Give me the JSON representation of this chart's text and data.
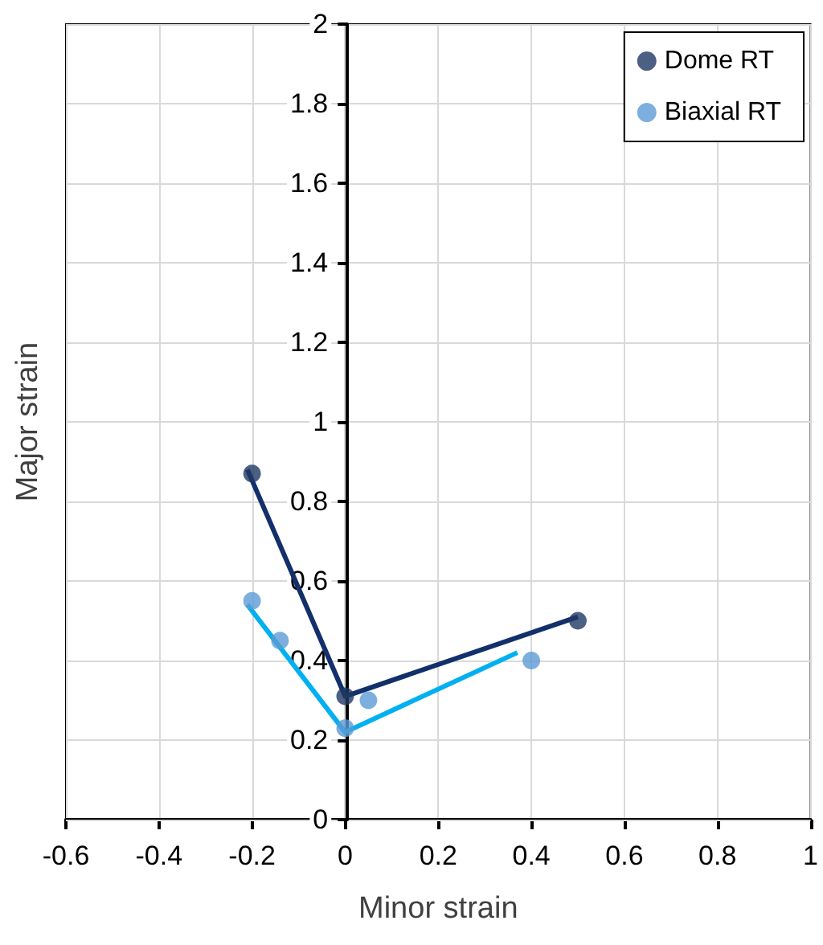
{
  "chart_data": {
    "type": "scatter",
    "xlabel": "Minor strain",
    "ylabel": "Major strain",
    "xlim": [
      -0.6,
      1
    ],
    "xticks": [
      -0.6,
      -0.4,
      -0.2,
      0,
      0.2,
      0.4,
      0.6,
      0.8,
      1
    ],
    "ylim": [
      0,
      2
    ],
    "yticks": [
      0,
      0.2,
      0.4,
      0.6,
      0.8,
      1,
      1.2,
      1.4,
      1.6,
      1.8,
      2
    ],
    "grid": true,
    "legend": "top right",
    "marker": "circle",
    "series": [
      {
        "name": "Dome RT",
        "color": "#1f3864",
        "x": [
          -0.2,
          0,
          0.5
        ],
        "values": [
          0.87,
          0.31,
          0.5
        ]
      },
      {
        "name": "Biaxial RT",
        "color": "#5b9bd5",
        "x": [
          -0.2,
          -0.14,
          0,
          0.05,
          0.4
        ],
        "values": [
          0.55,
          0.45,
          0.23,
          0.3,
          0.4
        ]
      },
      {
        "type": "line",
        "color": "#12306a",
        "marker": "none",
        "x": [
          -0.21,
          0,
          0.5
        ],
        "values": [
          0.88,
          0.31,
          0.51
        ]
      },
      {
        "type": "line",
        "color": "#00b0f0",
        "marker": "none",
        "x": [
          -0.21,
          0,
          0.37
        ],
        "values": [
          0.54,
          0.22,
          0.42
        ]
      }
    ]
  }
}
